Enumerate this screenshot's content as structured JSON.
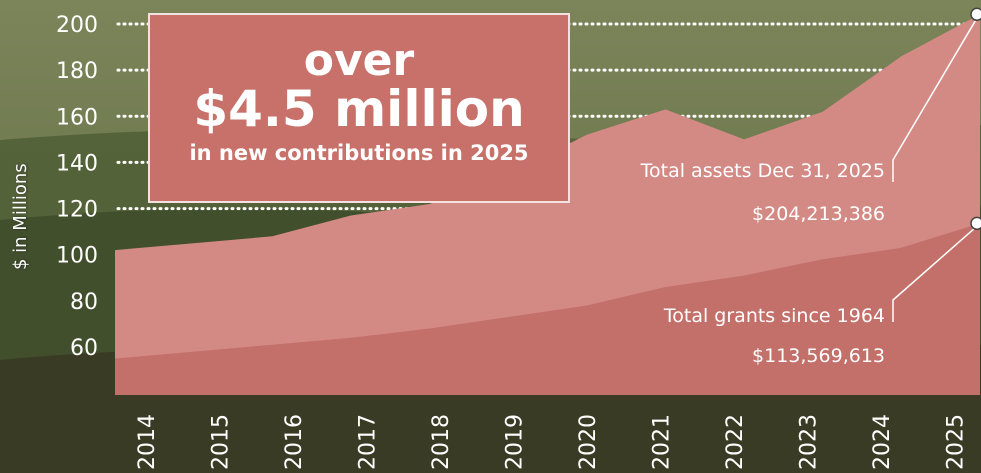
{
  "callout": {
    "line1": "over",
    "line2": "$4.5 million",
    "line3": "in new contributions in 2025"
  },
  "annotations": {
    "assets_label": "Total assets Dec 31, 2025",
    "assets_value": "$204,213,386",
    "grants_label": "Total grants since 1964",
    "grants_value": "$113,569,613"
  },
  "colors": {
    "assets_area": "#d38a85",
    "grants_area": "#c4706a",
    "callout_bg": "#c8716a",
    "text": "#ffffff"
  },
  "chart_data": {
    "type": "area",
    "title": "",
    "xlabel": "",
    "ylabel": "$ in Millions",
    "x": [
      "2014",
      "2015",
      "2016",
      "2017",
      "2018",
      "2019",
      "2020",
      "2021",
      "2022",
      "2023",
      "2024",
      "2025"
    ],
    "yticks": [
      60,
      80,
      100,
      120,
      140,
      160,
      180,
      200
    ],
    "ylim": [
      40,
      205
    ],
    "grid": "dotted lines at 120–200",
    "series": [
      {
        "name": "Total assets Dec 31, 2025",
        "values": [
          102,
          105,
          108,
          117,
          122,
          135,
          152,
          163,
          150,
          162,
          186,
          204.2
        ]
      },
      {
        "name": "Total grants since 1964",
        "values": [
          55,
          58,
          61,
          64,
          68,
          73,
          78,
          86,
          91,
          98,
          103,
          113.6
        ]
      }
    ]
  }
}
